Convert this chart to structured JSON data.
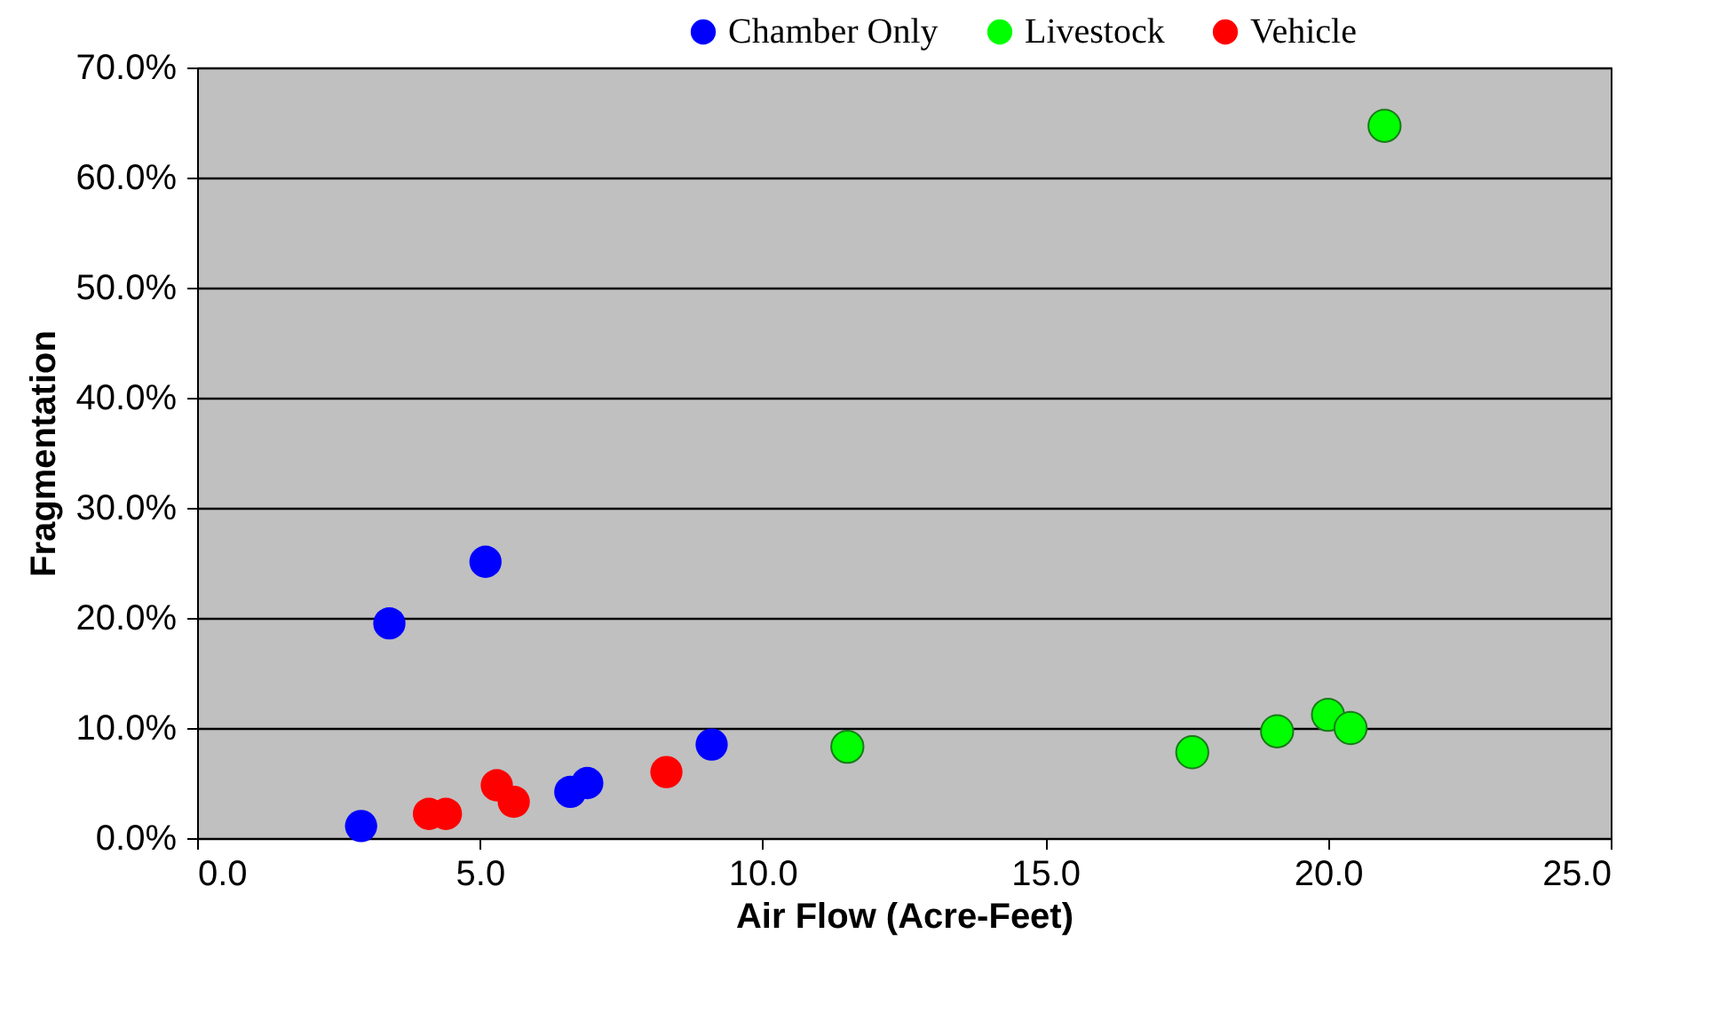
{
  "chart_data": {
    "type": "scatter",
    "xlabel": "Air Flow (Acre-Feet)",
    "ylabel": "Fragmentation",
    "marker": "circle",
    "grid": "y",
    "legend": "top",
    "xlim": [
      0,
      25
    ],
    "xticks": [
      {
        "value": 0,
        "label": "0.0"
      },
      {
        "value": 5,
        "label": "5.0"
      },
      {
        "value": 10,
        "label": "10.0"
      },
      {
        "value": 15,
        "label": "15.0"
      },
      {
        "value": 20,
        "label": "20.0"
      },
      {
        "value": 25,
        "label": "25.0"
      }
    ],
    "ylim": [
      0,
      70
    ],
    "yticks": [
      {
        "value": 0,
        "label": "0.0%"
      },
      {
        "value": 10,
        "label": "10.0%"
      },
      {
        "value": 20,
        "label": "20.0%"
      },
      {
        "value": 30,
        "label": "30.0%"
      },
      {
        "value": 40,
        "label": "40.0%"
      },
      {
        "value": 50,
        "label": "50.0%"
      },
      {
        "value": 60,
        "label": "60.0%"
      },
      {
        "value": 70,
        "label": "70.0%"
      }
    ],
    "series": [
      {
        "name": "Chamber Only",
        "color": "#0000ff",
        "x": [
          2.9,
          3.4,
          5.1,
          6.6,
          6.9,
          9.1
        ],
        "values": [
          1.1,
          19.5,
          25.1,
          4.2,
          5.0,
          8.5
        ]
      },
      {
        "name": "Livestock",
        "color": "#00ff00",
        "x": [
          11.5,
          17.6,
          19.1,
          20.0,
          20.4,
          21.0
        ],
        "values": [
          8.3,
          7.8,
          9.7,
          11.2,
          10.0,
          64.7
        ]
      },
      {
        "name": "Vehicle",
        "color": "#ff0000",
        "x": [
          4.1,
          4.4,
          5.3,
          5.6,
          8.3
        ],
        "values": [
          2.2,
          2.2,
          4.8,
          3.3,
          6.0
        ]
      }
    ]
  }
}
